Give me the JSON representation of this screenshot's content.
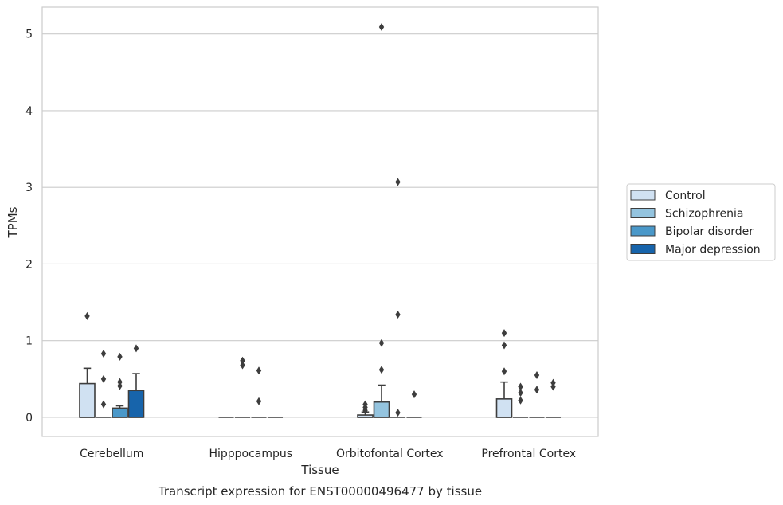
{
  "chart_data": {
    "type": "box",
    "title": "",
    "caption": "Transcript expression for ENST00000496477 by tissue",
    "xlabel": "Tissue",
    "ylabel": "TPMs",
    "ylim": [
      -0.25,
      5.35
    ],
    "yticks": [
      "0",
      "1",
      "2",
      "3",
      "4",
      "5"
    ],
    "grid": "horizontal",
    "legend_position": "right",
    "categories": [
      "Cerebellum",
      "Hipppocampus",
      "Orbitofontal Cortex",
      "Prefrontal Cortex"
    ],
    "series": [
      {
        "name": "Control",
        "color": "#d0e1f2",
        "boxes": [
          {
            "q1": 0,
            "median": 0,
            "q3": 0.44,
            "whisker_low": 0,
            "whisker_high": 0.64,
            "outliers": [
              1.32
            ]
          },
          {
            "q1": 0,
            "median": 0,
            "q3": 0,
            "whisker_low": 0,
            "whisker_high": 0,
            "outliers": []
          },
          {
            "q1": 0,
            "median": 0,
            "q3": 0.03,
            "whisker_low": 0,
            "whisker_high": 0.07,
            "outliers": [
              0.09,
              0.13,
              0.17
            ]
          },
          {
            "q1": 0,
            "median": 0,
            "q3": 0.24,
            "whisker_low": 0,
            "whisker_high": 0.46,
            "outliers": [
              0.6,
              0.94,
              1.1
            ]
          }
        ]
      },
      {
        "name": "Schizophrenia",
        "color": "#94c4df",
        "boxes": [
          {
            "q1": 0,
            "median": 0,
            "q3": 0,
            "whisker_low": 0,
            "whisker_high": 0,
            "outliers": [
              0.17,
              0.5,
              0.83
            ]
          },
          {
            "q1": 0,
            "median": 0,
            "q3": 0,
            "whisker_low": 0,
            "whisker_high": 0,
            "outliers": [
              0.68,
              0.74
            ]
          },
          {
            "q1": 0,
            "median": 0,
            "q3": 0.2,
            "whisker_low": 0,
            "whisker_high": 0.42,
            "outliers": [
              0.62,
              0.97,
              5.09
            ]
          },
          {
            "q1": 0,
            "median": 0,
            "q3": 0,
            "whisker_low": 0,
            "whisker_high": 0,
            "outliers": [
              0.22,
              0.32,
              0.4
            ]
          }
        ]
      },
      {
        "name": "Bipolar disorder",
        "color": "#4a98c9",
        "boxes": [
          {
            "q1": 0,
            "median": 0,
            "q3": 0.12,
            "whisker_low": 0,
            "whisker_high": 0.15,
            "outliers": [
              0.41,
              0.46,
              0.79
            ]
          },
          {
            "q1": 0,
            "median": 0,
            "q3": 0,
            "whisker_low": 0,
            "whisker_high": 0,
            "outliers": [
              0.21,
              0.61
            ]
          },
          {
            "q1": 0,
            "median": 0,
            "q3": 0,
            "whisker_low": 0,
            "whisker_high": 0,
            "outliers": [
              0.06,
              1.34,
              3.07
            ]
          },
          {
            "q1": 0,
            "median": 0,
            "q3": 0,
            "whisker_low": 0,
            "whisker_high": 0,
            "outliers": [
              0.36,
              0.55
            ]
          }
        ]
      },
      {
        "name": "Major depression",
        "color": "#1764ab",
        "boxes": [
          {
            "q1": 0,
            "median": 0,
            "q3": 0.35,
            "whisker_low": 0,
            "whisker_high": 0.57,
            "outliers": [
              0.9
            ]
          },
          {
            "q1": 0,
            "median": 0,
            "q3": 0,
            "whisker_low": 0,
            "whisker_high": 0,
            "outliers": []
          },
          {
            "q1": 0,
            "median": 0,
            "q3": 0,
            "whisker_low": 0,
            "whisker_high": 0,
            "outliers": [
              0.3
            ]
          },
          {
            "q1": 0,
            "median": 0,
            "q3": 0,
            "whisker_low": 0,
            "whisker_high": 0,
            "outliers": [
              0.4,
              0.45
            ]
          }
        ]
      }
    ]
  }
}
